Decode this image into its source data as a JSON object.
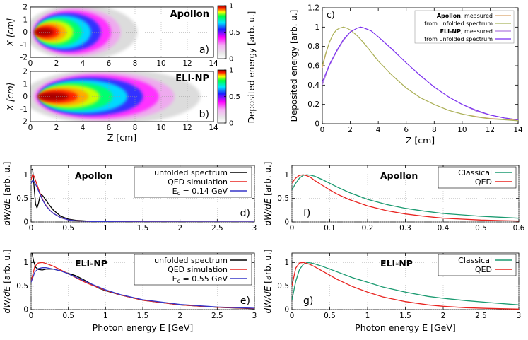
{
  "colors": {
    "black": "#000000",
    "red": "#e8231f",
    "blue": "#3636c8",
    "green": "#1a9a70",
    "olive": "#a8b45a",
    "purple": "#7a2ff0",
    "orange_mes": "#d9a36a",
    "violet_mes": "#b07ce0",
    "grid": "#aaaaaa"
  },
  "chart_data": [
    {
      "id": "a",
      "type": "heatmap",
      "panel_label": "a)",
      "title": "Apollon",
      "xlabel": "",
      "ylabel": "X [cm]",
      "xlim": [
        0,
        14
      ],
      "ylim": [
        -2,
        2
      ],
      "xticks": [
        "0",
        "2",
        "4",
        "6",
        "8",
        "10",
        "12",
        "14"
      ],
      "yticks": [
        "-2",
        "-1",
        "0",
        "1",
        "2"
      ],
      "peak_z": 1.5,
      "extent_z": 8.5
    },
    {
      "id": "b",
      "type": "heatmap",
      "panel_label": "b)",
      "title": "ELI-NP",
      "xlabel": "Z [cm]",
      "ylabel": "X [cm]",
      "xlim": [
        0,
        14
      ],
      "ylim": [
        -2,
        2
      ],
      "xticks": [
        "0",
        "2",
        "4",
        "6",
        "8",
        "10",
        "12",
        "14"
      ],
      "yticks": [
        "-2",
        "-1",
        "0",
        "1",
        "2"
      ],
      "peak_z": 2.5,
      "extent_z": 13.5
    },
    {
      "id": "colorbar",
      "type": "heatmap",
      "label": "Deposited energy [arb. u.]",
      "ticks": [
        "0",
        "0.5",
        "1"
      ],
      "range": [
        0,
        1
      ]
    },
    {
      "id": "c",
      "type": "line",
      "panel_label": "c)",
      "xlabel": "Z [cm]",
      "ylabel": "Deposited energy [arb. u.]",
      "xlim": [
        0,
        14
      ],
      "ylim": [
        0,
        1.2
      ],
      "xticks": [
        "0",
        "2",
        "4",
        "6",
        "8",
        "10",
        "12",
        "14"
      ],
      "yticks": [
        "0",
        "0.2",
        "0.4",
        "0.6",
        "0.8",
        "1",
        "1.2"
      ],
      "legend": [
        {
          "bold": "Apollon",
          "rest": ", measured",
          "color": "#d9a36a"
        },
        {
          "bold": "",
          "rest": "from unfolded spectrum",
          "color": "#a8b45a"
        },
        {
          "bold": "ELI-NP",
          "rest": ", measured",
          "color": "#b07ce0"
        },
        {
          "bold": "",
          "rest": "from unfolded spectrum",
          "color": "#7a2ff0"
        }
      ],
      "series": [
        {
          "name": "Apollon, measured",
          "x": [
            0,
            0.25,
            0.5,
            0.75,
            1,
            1.25,
            1.5,
            1.75,
            2,
            2.5,
            3,
            3.5,
            4,
            5,
            6,
            7,
            8,
            9,
            10,
            11,
            12,
            13,
            14
          ],
          "y": [
            0.58,
            0.72,
            0.84,
            0.92,
            0.97,
            0.99,
            1.0,
            0.99,
            0.97,
            0.91,
            0.83,
            0.74,
            0.65,
            0.5,
            0.37,
            0.27,
            0.2,
            0.14,
            0.1,
            0.075,
            0.055,
            0.045,
            0.035
          ]
        },
        {
          "name": "Apollon, from unfolded spectrum",
          "x": [
            0,
            0.25,
            0.5,
            0.75,
            1,
            1.25,
            1.5,
            1.75,
            2,
            2.5,
            3,
            3.5,
            4,
            5,
            6,
            7,
            8,
            9,
            10,
            11,
            12,
            13,
            14
          ],
          "y": [
            0.6,
            0.73,
            0.84,
            0.92,
            0.97,
            0.99,
            1.0,
            0.99,
            0.97,
            0.91,
            0.83,
            0.74,
            0.65,
            0.5,
            0.37,
            0.27,
            0.2,
            0.14,
            0.1,
            0.07,
            0.05,
            0.04,
            0.03
          ]
        },
        {
          "name": "ELI-NP, measured",
          "x": [
            0,
            0.25,
            0.5,
            1,
            1.5,
            2,
            2.5,
            2.75,
            3,
            3.5,
            4,
            5,
            6,
            7,
            8,
            9,
            10,
            11,
            12,
            13,
            14
          ],
          "y": [
            0.4,
            0.5,
            0.6,
            0.74,
            0.86,
            0.95,
            0.99,
            1.0,
            0.99,
            0.96,
            0.9,
            0.77,
            0.63,
            0.5,
            0.38,
            0.28,
            0.2,
            0.13,
            0.09,
            0.06,
            0.04
          ]
        },
        {
          "name": "ELI-NP, from unfolded spectrum",
          "x": [
            0,
            0.25,
            0.5,
            1,
            1.5,
            2,
            2.5,
            2.75,
            3,
            3.5,
            4,
            5,
            6,
            7,
            8,
            9,
            10,
            11,
            12,
            13,
            14
          ],
          "y": [
            0.43,
            0.52,
            0.61,
            0.75,
            0.87,
            0.95,
            0.99,
            1.0,
            0.99,
            0.96,
            0.9,
            0.77,
            0.63,
            0.5,
            0.38,
            0.28,
            0.2,
            0.14,
            0.09,
            0.06,
            0.04
          ]
        }
      ]
    },
    {
      "id": "d",
      "type": "line",
      "panel_label": "d)",
      "title": "Apollon",
      "xlabel": "",
      "ylabel": "dW/dE [arb. u.]",
      "xlim": [
        0,
        3
      ],
      "ylim": [
        0,
        1.2
      ],
      "xticks": [
        "0",
        "0.5",
        "1",
        "1.5",
        "2",
        "2.5",
        "3"
      ],
      "yticks": [
        "0",
        "0.5",
        "1"
      ],
      "legend": [
        "unfolded spectrum",
        "QED simulation",
        "E_c = 0.14 GeV"
      ],
      "series": [
        {
          "name": "unfolded spectrum",
          "x": [
            0,
            0.02,
            0.04,
            0.06,
            0.08,
            0.1,
            0.12,
            0.14,
            0.16,
            0.2,
            0.25,
            0.3,
            0.4,
            0.5,
            0.6,
            0.8,
            1,
            1.5,
            2,
            3
          ],
          "y": [
            1.1,
            1.12,
            0.75,
            0.38,
            0.3,
            0.4,
            0.55,
            0.58,
            0.55,
            0.46,
            0.35,
            0.25,
            0.12,
            0.06,
            0.035,
            0.015,
            0.008,
            0.002,
            0.001,
            0
          ]
        },
        {
          "name": "QED simulation",
          "x": [
            0,
            0.02,
            0.04,
            0.06,
            0.08,
            0.1,
            0.13,
            0.16,
            0.2,
            0.25,
            0.3,
            0.4,
            0.5,
            0.6,
            0.8,
            1,
            1.5,
            2,
            3
          ],
          "y": [
            0.9,
            1.0,
            0.97,
            0.88,
            0.79,
            0.7,
            0.57,
            0.46,
            0.35,
            0.25,
            0.18,
            0.09,
            0.045,
            0.025,
            0.01,
            0.005,
            0.001,
            0,
            0
          ]
        },
        {
          "name": "E_c = 0.14 GeV",
          "x": [
            0,
            0.02,
            0.04,
            0.06,
            0.08,
            0.1,
            0.13,
            0.16,
            0.2,
            0.25,
            0.3,
            0.4,
            0.5,
            0.6,
            0.8,
            1,
            1.5,
            2,
            3
          ],
          "y": [
            0.82,
            0.88,
            0.86,
            0.8,
            0.74,
            0.66,
            0.55,
            0.45,
            0.34,
            0.25,
            0.18,
            0.09,
            0.045,
            0.025,
            0.01,
            0.005,
            0.001,
            0,
            0
          ]
        }
      ]
    },
    {
      "id": "e",
      "type": "line",
      "panel_label": "e)",
      "title": "ELI-NP",
      "xlabel": "Photon energy E [GeV]",
      "ylabel": "dW/dE [arb. u.]",
      "xlim": [
        0,
        3
      ],
      "ylim": [
        0,
        1.2
      ],
      "xticks": [
        "0",
        "0.5",
        "1",
        "1.5",
        "2",
        "2.5",
        "3"
      ],
      "yticks": [
        "0",
        "0.5",
        "1"
      ],
      "legend": [
        "unfolded spectrum",
        "QED simulation",
        "E_c = 0.55 GeV"
      ],
      "series": [
        {
          "name": "unfolded spectrum",
          "x": [
            0,
            0.03,
            0.06,
            0.1,
            0.15,
            0.2,
            0.3,
            0.4,
            0.5,
            0.6,
            0.7,
            0.8,
            0.9,
            1,
            1.2,
            1.5,
            2,
            2.5,
            3
          ],
          "y": [
            1.3,
            1.05,
            0.9,
            0.85,
            0.84,
            0.86,
            0.86,
            0.82,
            0.77,
            0.72,
            0.64,
            0.55,
            0.46,
            0.4,
            0.31,
            0.2,
            0.1,
            0.05,
            0.02
          ]
        },
        {
          "name": "QED simulation",
          "x": [
            0,
            0.05,
            0.1,
            0.15,
            0.2,
            0.3,
            0.4,
            0.5,
            0.6,
            0.7,
            0.8,
            1,
            1.2,
            1.5,
            2,
            2.5,
            3
          ],
          "y": [
            0.6,
            0.92,
            0.99,
            1.0,
            0.98,
            0.92,
            0.84,
            0.76,
            0.68,
            0.6,
            0.53,
            0.41,
            0.31,
            0.2,
            0.1,
            0.05,
            0.025
          ]
        },
        {
          "name": "E_c = 0.55 GeV",
          "x": [
            0,
            0.05,
            0.1,
            0.15,
            0.2,
            0.3,
            0.4,
            0.5,
            0.6,
            0.7,
            0.8,
            1,
            1.2,
            1.5,
            2,
            2.5,
            3
          ],
          "y": [
            0.58,
            0.8,
            0.87,
            0.89,
            0.89,
            0.86,
            0.82,
            0.76,
            0.69,
            0.62,
            0.55,
            0.42,
            0.32,
            0.21,
            0.11,
            0.055,
            0.03
          ]
        }
      ]
    },
    {
      "id": "f",
      "type": "line",
      "panel_label": "f)",
      "title": "Apollon",
      "xlabel": "",
      "ylabel": "dW/dE [arb. u.]",
      "xlim": [
        0,
        0.6
      ],
      "ylim": [
        0,
        1.2
      ],
      "xticks": [
        "0",
        "0.1",
        "0.2",
        "0.3",
        "0.4",
        "0.5",
        "0.6"
      ],
      "yticks": [
        "0",
        "0.5",
        "1"
      ],
      "legend": [
        "Classical",
        "QED"
      ],
      "series": [
        {
          "name": "Classical",
          "x": [
            0,
            0.01,
            0.02,
            0.03,
            0.04,
            0.05,
            0.06,
            0.08,
            0.1,
            0.12,
            0.15,
            0.2,
            0.25,
            0.3,
            0.35,
            0.4,
            0.45,
            0.5,
            0.55,
            0.6
          ],
          "y": [
            0.68,
            0.82,
            0.93,
            0.99,
            1.0,
            0.99,
            0.97,
            0.9,
            0.82,
            0.74,
            0.63,
            0.48,
            0.37,
            0.29,
            0.23,
            0.18,
            0.15,
            0.12,
            0.1,
            0.08
          ]
        },
        {
          "name": "QED",
          "x": [
            0,
            0.01,
            0.02,
            0.03,
            0.04,
            0.05,
            0.06,
            0.08,
            0.1,
            0.12,
            0.15,
            0.2,
            0.25,
            0.3,
            0.35,
            0.4,
            0.45,
            0.5,
            0.55,
            0.6
          ],
          "y": [
            0.83,
            0.93,
            0.99,
            1.0,
            0.98,
            0.94,
            0.88,
            0.78,
            0.68,
            0.59,
            0.48,
            0.34,
            0.24,
            0.17,
            0.12,
            0.08,
            0.06,
            0.04,
            0.03,
            0.02
          ]
        }
      ]
    },
    {
      "id": "g",
      "type": "line",
      "panel_label": "g)",
      "title": "ELI-NP",
      "xlabel": "Photon energy E [GeV]",
      "ylabel": "dW/dE [arb. u.]",
      "xlim": [
        0,
        3
      ],
      "ylim": [
        0,
        1.2
      ],
      "xticks": [
        "0",
        "0.5",
        "1",
        "1.5",
        "2",
        "2.5",
        "3"
      ],
      "yticks": [
        "0",
        "0.5",
        "1"
      ],
      "legend": [
        "Classical",
        "QED"
      ],
      "series": [
        {
          "name": "Classical",
          "x": [
            0,
            0.05,
            0.1,
            0.15,
            0.2,
            0.25,
            0.3,
            0.4,
            0.5,
            0.6,
            0.8,
            1,
            1.2,
            1.5,
            1.8,
            2,
            2.3,
            2.6,
            3
          ],
          "y": [
            0.2,
            0.6,
            0.85,
            0.96,
            1.0,
            0.99,
            0.97,
            0.92,
            0.86,
            0.8,
            0.68,
            0.58,
            0.48,
            0.37,
            0.28,
            0.24,
            0.19,
            0.15,
            0.1
          ]
        },
        {
          "name": "QED",
          "x": [
            0,
            0.05,
            0.1,
            0.15,
            0.2,
            0.25,
            0.3,
            0.4,
            0.5,
            0.6,
            0.8,
            1,
            1.2,
            1.5,
            1.8,
            2,
            2.3,
            2.6,
            3
          ],
          "y": [
            0.5,
            0.88,
            0.99,
            1.0,
            0.98,
            0.95,
            0.91,
            0.82,
            0.73,
            0.64,
            0.49,
            0.37,
            0.27,
            0.17,
            0.1,
            0.07,
            0.04,
            0.025,
            0.01
          ]
        }
      ]
    }
  ]
}
